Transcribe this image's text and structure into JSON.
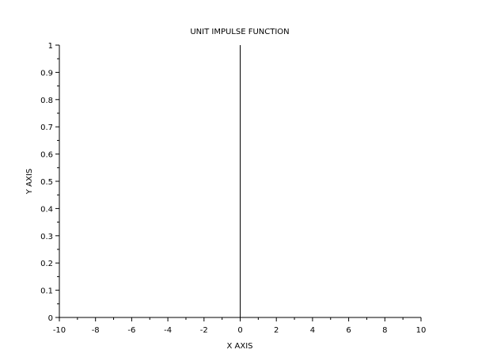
{
  "chart_data": {
    "type": "line",
    "title": "UNIT IMPULSE FUNCTION",
    "xlabel": "X AXIS",
    "ylabel": "Y AXIS",
    "xlim": [
      -10,
      10
    ],
    "ylim": [
      0,
      1
    ],
    "x_ticks": [
      "-10",
      "-8",
      "-6",
      "-4",
      "-2",
      "0",
      "2",
      "4",
      "6",
      "8",
      "10"
    ],
    "y_ticks": [
      "0",
      "0.1",
      "0.2",
      "0.3",
      "0.4",
      "0.5",
      "0.6",
      "0.7",
      "0.8",
      "0.9",
      "1"
    ],
    "grid": false,
    "legend": "none",
    "series": [
      {
        "x": [
          0,
          0
        ],
        "y": [
          0,
          1
        ],
        "color": "#000000"
      }
    ]
  }
}
